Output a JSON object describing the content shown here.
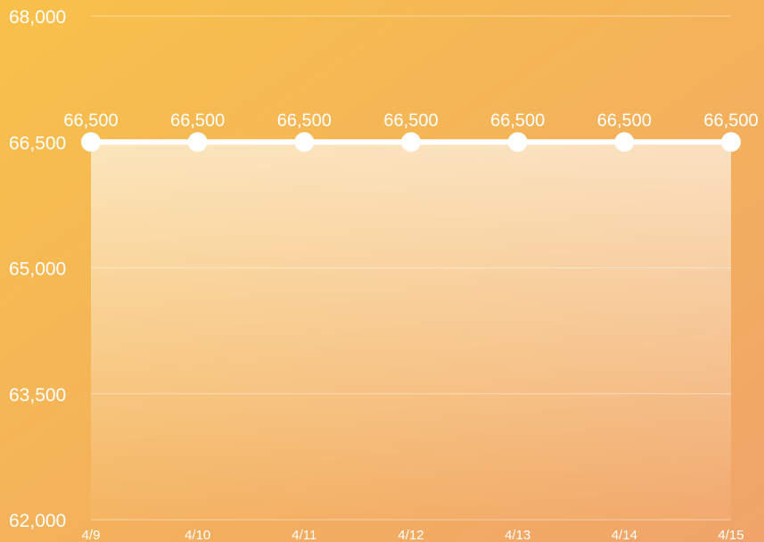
{
  "chart_data": {
    "type": "area",
    "title": "",
    "xlabel": "",
    "ylabel": "",
    "categories": [
      "4/9",
      "4/10",
      "4/11",
      "4/12",
      "4/13",
      "4/14",
      "4/15"
    ],
    "series": [
      {
        "values": [
          66500,
          66500,
          66500,
          66500,
          66500,
          66500,
          66500
        ],
        "data_labels": [
          "66,500",
          "66,500",
          "66,500",
          "66,500",
          "66,500",
          "66,500",
          "66,500"
        ]
      }
    ],
    "ylim": [
      62000,
      68000
    ],
    "yticks": [
      62000,
      63500,
      65000,
      66500,
      68000
    ],
    "ytick_labels": [
      "62,000",
      "63,500",
      "65,000",
      "66,500",
      "68,000"
    ],
    "grid": true,
    "legend": "none",
    "colors": {
      "background_start": "#F8C14A",
      "background_end": "#F0A46A",
      "line": "#FFFFFF",
      "area_fill": "#FFFFFF"
    }
  }
}
